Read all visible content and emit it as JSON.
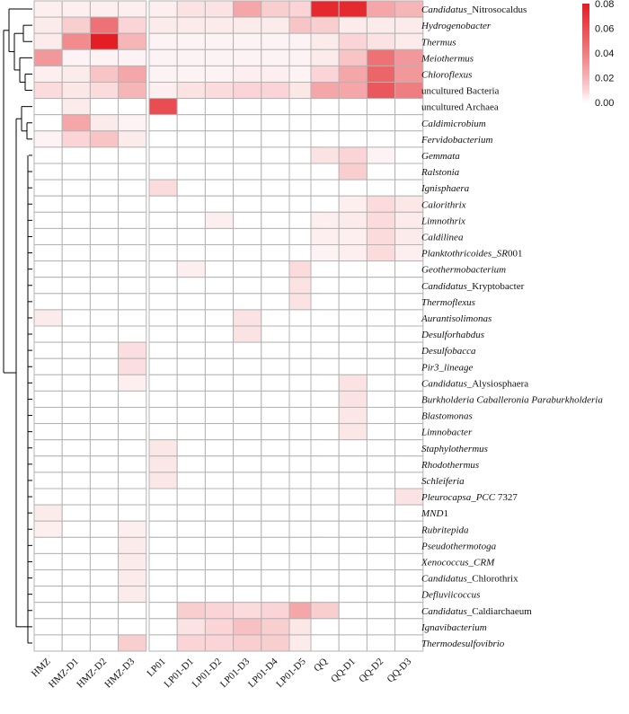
{
  "chart_data": {
    "type": "heatmap",
    "colorscale": {
      "min": 0.0,
      "max": 0.08,
      "low_color": "#ffffff",
      "high_color": "#e31e24",
      "ticks": [
        "0.08",
        "0.06",
        "0.04",
        "0.02",
        "0.00"
      ]
    },
    "columns": [
      "HMZ",
      "HMZ-D1",
      "HMZ-D2",
      "HMZ-D3",
      "LP01",
      "LP01-D1",
      "LP01-D2",
      "LP01-D3",
      "LP01-D4",
      "LP01-D5",
      "QQ",
      "QQ-D1",
      "QQ-D2",
      "QQ-D3"
    ],
    "column_groups": [
      4,
      6,
      4
    ],
    "rows": [
      {
        "label": [
          {
            "t": "Candidatus",
            "i": true
          },
          {
            "t": "_Nitrosocaldus",
            "i": false
          }
        ],
        "values": [
          0.003,
          0.003,
          0.003,
          0.003,
          0.003,
          0.006,
          0.006,
          0.025,
          0.012,
          0.01,
          0.075,
          0.075,
          0.025,
          0.02
        ]
      },
      {
        "label": [
          {
            "t": "Hydrogenobacter",
            "i": true
          }
        ],
        "values": [
          0.004,
          0.012,
          0.045,
          0.01,
          0.004,
          0.004,
          0.004,
          0.004,
          0.004,
          0.015,
          0.012,
          0.004,
          0.004,
          0.004
        ]
      },
      {
        "label": [
          {
            "t": "Thermus",
            "i": true
          }
        ],
        "values": [
          0.004,
          0.035,
          0.08,
          0.02,
          0.002,
          0.002,
          0.002,
          0.002,
          0.002,
          0.002,
          0.004,
          0.01,
          0.006,
          0.004
        ]
      },
      {
        "label": [
          {
            "t": "Meiothermus",
            "i": true
          }
        ],
        "values": [
          0.03,
          0.002,
          0.002,
          0.002,
          0.002,
          0.002,
          0.002,
          0.002,
          0.002,
          0.002,
          0.004,
          0.015,
          0.045,
          0.03
        ]
      },
      {
        "label": [
          {
            "t": "Chloroflexus",
            "i": true
          }
        ],
        "values": [
          0.003,
          0.004,
          0.015,
          0.025,
          0.002,
          0.002,
          0.002,
          0.003,
          0.003,
          0.002,
          0.01,
          0.025,
          0.05,
          0.03
        ]
      },
      {
        "label": [
          {
            "t": "uncultured  Bacteria",
            "i": false
          }
        ],
        "values": [
          0.008,
          0.005,
          0.008,
          0.02,
          0.003,
          0.006,
          0.008,
          0.01,
          0.01,
          0.005,
          0.025,
          0.025,
          0.055,
          0.04
        ]
      },
      {
        "label": [
          {
            "t": "uncultured  Archaea",
            "i": false
          }
        ],
        "values": [
          0.0,
          0.004,
          0.0,
          0.0,
          0.06,
          0.0,
          0.0,
          0.0,
          0.0,
          0.0,
          0.0,
          0.0,
          0.0,
          0.0
        ]
      },
      {
        "label": [
          {
            "t": "Caldimicrobium",
            "i": true
          }
        ],
        "values": [
          0.0,
          0.025,
          0.004,
          0.002,
          0.0,
          0.0,
          0.0,
          0.0,
          0.0,
          0.0,
          0.0,
          0.0,
          0.0,
          0.0
        ]
      },
      {
        "label": [
          {
            "t": "Fervidobacterium",
            "i": true
          }
        ],
        "values": [
          0.002,
          0.01,
          0.015,
          0.004,
          0.0,
          0.0,
          0.0,
          0.0,
          0.0,
          0.0,
          0.0,
          0.0,
          0.0,
          0.0
        ]
      },
      {
        "label": [
          {
            "t": "Gemmata",
            "i": true
          }
        ],
        "values": [
          0.0,
          0.0,
          0.0,
          0.0,
          0.0,
          0.0,
          0.0,
          0.0,
          0.0,
          0.0,
          0.006,
          0.01,
          0.002,
          0.0
        ]
      },
      {
        "label": [
          {
            "t": "Ralstonia",
            "i": true
          }
        ],
        "values": [
          0.0,
          0.0,
          0.0,
          0.0,
          0.0,
          0.0,
          0.0,
          0.0,
          0.0,
          0.0,
          0.0,
          0.012,
          0.0,
          0.0
        ]
      },
      {
        "label": [
          {
            "t": "Ignisphaera",
            "i": true
          }
        ],
        "values": [
          0.0,
          0.0,
          0.0,
          0.0,
          0.008,
          0.0,
          0.0,
          0.0,
          0.0,
          0.0,
          0.0,
          0.0,
          0.0,
          0.0
        ]
      },
      {
        "label": [
          {
            "t": "Calorithrix",
            "i": true
          }
        ],
        "values": [
          0.0,
          0.0,
          0.0,
          0.0,
          0.0,
          0.0,
          0.0,
          0.0,
          0.0,
          0.0,
          0.0,
          0.003,
          0.008,
          0.005
        ]
      },
      {
        "label": [
          {
            "t": "Limnothrix",
            "i": true
          }
        ],
        "values": [
          0.0,
          0.0,
          0.0,
          0.0,
          0.0,
          0.0,
          0.003,
          0.0,
          0.0,
          0.0,
          0.003,
          0.004,
          0.008,
          0.004
        ]
      },
      {
        "label": [
          {
            "t": "Caldilinea",
            "i": true
          }
        ],
        "values": [
          0.0,
          0.0,
          0.0,
          0.0,
          0.0,
          0.0,
          0.0,
          0.0,
          0.0,
          0.0,
          0.003,
          0.003,
          0.008,
          0.004
        ]
      },
      {
        "label": [
          {
            "t": "Planktothricoides_SR",
            "i": true
          },
          {
            "t": "001",
            "i": false
          }
        ],
        "values": [
          0.0,
          0.0,
          0.0,
          0.0,
          0.0,
          0.0,
          0.0,
          0.0,
          0.0,
          0.0,
          0.002,
          0.003,
          0.008,
          0.003
        ]
      },
      {
        "label": [
          {
            "t": "Geothermobacterium",
            "i": true
          }
        ],
        "values": [
          0.0,
          0.0,
          0.0,
          0.0,
          0.0,
          0.003,
          0.0,
          0.0,
          0.0,
          0.008,
          0.0,
          0.0,
          0.0,
          0.0
        ]
      },
      {
        "label": [
          {
            "t": "Candidatus",
            "i": true
          },
          {
            "t": "_Kryptobacter",
            "i": false
          }
        ],
        "values": [
          0.0,
          0.0,
          0.0,
          0.0,
          0.0,
          0.0,
          0.0,
          0.0,
          0.0,
          0.006,
          0.0,
          0.0,
          0.0,
          0.0
        ]
      },
      {
        "label": [
          {
            "t": "Thermoflexus",
            "i": true
          }
        ],
        "values": [
          0.0,
          0.0,
          0.0,
          0.0,
          0.0,
          0.0,
          0.0,
          0.0,
          0.0,
          0.006,
          0.0,
          0.0,
          0.0,
          0.0
        ]
      },
      {
        "label": [
          {
            "t": "Aurantisolimonas",
            "i": true
          }
        ],
        "values": [
          0.004,
          0.0,
          0.0,
          0.0,
          0.0,
          0.0,
          0.0,
          0.006,
          0.0,
          0.0,
          0.0,
          0.0,
          0.0,
          0.0
        ]
      },
      {
        "label": [
          {
            "t": "Desulforhabdus",
            "i": true
          }
        ],
        "values": [
          0.0,
          0.0,
          0.0,
          0.0,
          0.0,
          0.0,
          0.0,
          0.006,
          0.0,
          0.0,
          0.0,
          0.0,
          0.0,
          0.0
        ]
      },
      {
        "label": [
          {
            "t": "Desulfobacca",
            "i": true
          }
        ],
        "values": [
          0.0,
          0.0,
          0.0,
          0.007,
          0.0,
          0.0,
          0.0,
          0.0,
          0.0,
          0.0,
          0.0,
          0.0,
          0.0,
          0.0
        ]
      },
      {
        "label": [
          {
            "t": "Pir3_lineage",
            "i": true
          }
        ],
        "values": [
          0.0,
          0.0,
          0.0,
          0.007,
          0.0,
          0.0,
          0.0,
          0.0,
          0.0,
          0.0,
          0.0,
          0.0,
          0.0,
          0.0
        ]
      },
      {
        "label": [
          {
            "t": "Candidatus",
            "i": true
          },
          {
            "t": "_Alysiosphaera",
            "i": false
          }
        ],
        "values": [
          0.0,
          0.0,
          0.0,
          0.003,
          0.0,
          0.0,
          0.0,
          0.0,
          0.0,
          0.0,
          0.0,
          0.006,
          0.0,
          0.0
        ]
      },
      {
        "label": [
          {
            "t": "Burkholderia  Caballeronia  Paraburkholderia",
            "i": true
          }
        ],
        "values": [
          0.0,
          0.0,
          0.0,
          0.0,
          0.0,
          0.0,
          0.0,
          0.0,
          0.0,
          0.0,
          0.0,
          0.006,
          0.0,
          0.0
        ]
      },
      {
        "label": [
          {
            "t": "Blastomonas",
            "i": true
          }
        ],
        "values": [
          0.0,
          0.0,
          0.0,
          0.0,
          0.0,
          0.0,
          0.0,
          0.0,
          0.0,
          0.0,
          0.0,
          0.005,
          0.0,
          0.0
        ]
      },
      {
        "label": [
          {
            "t": "Limnobacter",
            "i": true
          }
        ],
        "values": [
          0.0,
          0.0,
          0.0,
          0.0,
          0.0,
          0.0,
          0.0,
          0.0,
          0.0,
          0.0,
          0.0,
          0.005,
          0.0,
          0.0
        ]
      },
      {
        "label": [
          {
            "t": "Staphylothermus",
            "i": true
          }
        ],
        "values": [
          0.0,
          0.0,
          0.0,
          0.0,
          0.005,
          0.0,
          0.0,
          0.0,
          0.0,
          0.0,
          0.0,
          0.0,
          0.0,
          0.0
        ]
      },
      {
        "label": [
          {
            "t": "Rhodothermus",
            "i": true
          }
        ],
        "values": [
          0.0,
          0.0,
          0.0,
          0.0,
          0.005,
          0.0,
          0.0,
          0.0,
          0.0,
          0.0,
          0.0,
          0.0,
          0.0,
          0.0
        ]
      },
      {
        "label": [
          {
            "t": "Schleiferia",
            "i": true
          }
        ],
        "values": [
          0.0,
          0.0,
          0.0,
          0.0,
          0.005,
          0.0,
          0.0,
          0.0,
          0.0,
          0.0,
          0.0,
          0.0,
          0.0,
          0.0
        ]
      },
      {
        "label": [
          {
            "t": "Pleurocapsa_PCC",
            "i": true
          },
          {
            "t": " 7327",
            "i": false
          }
        ],
        "values": [
          0.0,
          0.0,
          0.0,
          0.0,
          0.0,
          0.0,
          0.0,
          0.0,
          0.0,
          0.0,
          0.0,
          0.0,
          0.0,
          0.006
        ]
      },
      {
        "label": [
          {
            "t": "MND",
            "i": true
          },
          {
            "t": "1",
            "i": false
          }
        ],
        "values": [
          0.004,
          0.0,
          0.0,
          0.0,
          0.0,
          0.0,
          0.0,
          0.0,
          0.0,
          0.0,
          0.0,
          0.0,
          0.0,
          0.0
        ]
      },
      {
        "label": [
          {
            "t": "Rubritepida",
            "i": true
          }
        ],
        "values": [
          0.003,
          0.0,
          0.0,
          0.003,
          0.0,
          0.0,
          0.0,
          0.0,
          0.0,
          0.0,
          0.0,
          0.0,
          0.0,
          0.0
        ]
      },
      {
        "label": [
          {
            "t": "Pseudothermotoga",
            "i": true
          }
        ],
        "values": [
          0.0,
          0.0,
          0.0,
          0.004,
          0.0,
          0.0,
          0.0,
          0.0,
          0.0,
          0.0,
          0.0,
          0.0,
          0.0,
          0.0
        ]
      },
      {
        "label": [
          {
            "t": "Xenococcus_CRM",
            "i": true
          }
        ],
        "values": [
          0.0,
          0.0,
          0.0,
          0.004,
          0.0,
          0.0,
          0.0,
          0.0,
          0.0,
          0.0,
          0.0,
          0.0,
          0.0,
          0.0
        ]
      },
      {
        "label": [
          {
            "t": "Candidatus",
            "i": true
          },
          {
            "t": "_Chlorothrix",
            "i": false
          }
        ],
        "values": [
          0.0,
          0.0,
          0.0,
          0.004,
          0.0,
          0.0,
          0.0,
          0.0,
          0.0,
          0.0,
          0.0,
          0.0,
          0.0,
          0.0
        ]
      },
      {
        "label": [
          {
            "t": "Defluviicoccus",
            "i": true
          }
        ],
        "values": [
          0.0,
          0.0,
          0.0,
          0.004,
          0.0,
          0.0,
          0.0,
          0.0,
          0.0,
          0.0,
          0.0,
          0.0,
          0.0,
          0.0
        ]
      },
      {
        "label": [
          {
            "t": "Candidatus",
            "i": true
          },
          {
            "t": "_Caldiarchaeum",
            "i": false
          }
        ],
        "values": [
          0.0,
          0.0,
          0.0,
          0.0,
          0.0,
          0.012,
          0.01,
          0.008,
          0.01,
          0.025,
          0.012,
          0.0,
          0.0,
          0.0
        ]
      },
      {
        "label": [
          {
            "t": "Ignavibacterium",
            "i": true
          }
        ],
        "values": [
          0.0,
          0.0,
          0.0,
          0.0,
          0.0,
          0.006,
          0.01,
          0.016,
          0.012,
          0.005,
          0.0,
          0.0,
          0.0,
          0.0
        ]
      },
      {
        "label": [
          {
            "t": "Thermodesulfovibrio",
            "i": true
          }
        ],
        "values": [
          0.0,
          0.0,
          0.0,
          0.012,
          0.0,
          0.01,
          0.01,
          0.012,
          0.012,
          0.004,
          0.0,
          0.0,
          0.0,
          0.0
        ]
      }
    ]
  }
}
